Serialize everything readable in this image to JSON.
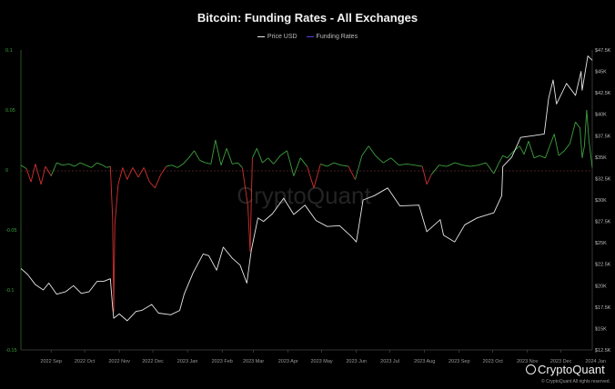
{
  "chart_data": {
    "type": "line",
    "title": "Bitcoin: Funding Rates - All Exchanges",
    "watermark": "CryptoQuant",
    "x_ticks": [
      "2022 Sep",
      "2022 Oct",
      "2022 Nov",
      "2022 Dec",
      "2023 Jan",
      "2023 Feb",
      "2023 Mar",
      "2023 Apr",
      "2023 May",
      "2023 Jun",
      "2023 Jul",
      "2023 Aug",
      "2023 Sep",
      "2023 Oct",
      "2023 Nov",
      "2023 Dec",
      "2024 Jan"
    ],
    "x_domain": [
      "2022-08-19",
      "2024-01-12"
    ],
    "left_axis": {
      "ticks": [
        "0.1",
        "0.05",
        "0",
        "-0.05",
        "-0.1",
        "-0.15"
      ],
      "range": [
        -0.15,
        0.1
      ]
    },
    "right_axis": {
      "ticks": [
        "$47.5K",
        "$45K",
        "$42.5K",
        "$40K",
        "$37.5K",
        "$35K",
        "$32.5K",
        "$30K",
        "$27.5K",
        "$25K",
        "$22.5K",
        "$20K",
        "$17.5K",
        "$15K",
        "$12.5K"
      ],
      "range": [
        12500,
        47500
      ]
    },
    "series": [
      {
        "name": "Price USD",
        "color": "#e8e8e8",
        "axis": "right",
        "points": [
          [
            "2022-08-19",
            22000
          ],
          [
            "2022-08-25",
            21300
          ],
          [
            "2022-09-01",
            20100
          ],
          [
            "2022-09-08",
            19500
          ],
          [
            "2022-09-13",
            20300
          ],
          [
            "2022-09-20",
            19000
          ],
          [
            "2022-09-28",
            19300
          ],
          [
            "2022-10-05",
            20000
          ],
          [
            "2022-10-12",
            19100
          ],
          [
            "2022-10-19",
            19300
          ],
          [
            "2022-10-26",
            20500
          ],
          [
            "2022-11-01",
            20500
          ],
          [
            "2022-11-07",
            20800
          ],
          [
            "2022-11-09",
            17500
          ],
          [
            "2022-11-10",
            16200
          ],
          [
            "2022-11-15",
            16700
          ],
          [
            "2022-11-22",
            15900
          ],
          [
            "2022-11-30",
            17000
          ],
          [
            "2022-12-05",
            17100
          ],
          [
            "2022-12-14",
            17800
          ],
          [
            "2022-12-20",
            16800
          ],
          [
            "2022-12-31",
            16600
          ],
          [
            "2023-01-08",
            17100
          ],
          [
            "2023-01-12",
            19000
          ],
          [
            "2023-01-20",
            21500
          ],
          [
            "2023-01-29",
            23700
          ],
          [
            "2023-02-03",
            23500
          ],
          [
            "2023-02-10",
            21800
          ],
          [
            "2023-02-16",
            24500
          ],
          [
            "2023-02-24",
            23200
          ],
          [
            "2023-03-03",
            22400
          ],
          [
            "2023-03-09",
            20300
          ],
          [
            "2023-03-13",
            24100
          ],
          [
            "2023-03-19",
            27900
          ],
          [
            "2023-03-24",
            27500
          ],
          [
            "2023-04-01",
            28400
          ],
          [
            "2023-04-11",
            30200
          ],
          [
            "2023-04-20",
            28300
          ],
          [
            "2023-04-30",
            29400
          ],
          [
            "2023-05-10",
            27600
          ],
          [
            "2023-05-20",
            26900
          ],
          [
            "2023-05-31",
            27000
          ],
          [
            "2023-06-10",
            25800
          ],
          [
            "2023-06-15",
            25100
          ],
          [
            "2023-06-21",
            30000
          ],
          [
            "2023-07-01",
            30500
          ],
          [
            "2023-07-13",
            31400
          ],
          [
            "2023-07-24",
            29300
          ],
          [
            "2023-08-10",
            29400
          ],
          [
            "2023-08-17",
            26300
          ],
          [
            "2023-08-29",
            27700
          ],
          [
            "2023-09-01",
            25900
          ],
          [
            "2023-09-11",
            25100
          ],
          [
            "2023-09-20",
            27100
          ],
          [
            "2023-10-01",
            27900
          ],
          [
            "2023-10-16",
            28500
          ],
          [
            "2023-10-23",
            30500
          ],
          [
            "2023-10-24",
            33900
          ],
          [
            "2023-11-01",
            35000
          ],
          [
            "2023-11-09",
            37300
          ],
          [
            "2023-11-20",
            37500
          ],
          [
            "2023-11-30",
            37700
          ],
          [
            "2023-12-04",
            41900
          ],
          [
            "2023-12-08",
            44000
          ],
          [
            "2023-12-11",
            41200
          ],
          [
            "2023-12-20",
            43600
          ],
          [
            "2023-12-28",
            42200
          ],
          [
            "2024-01-02",
            45000
          ],
          [
            "2024-01-03",
            42800
          ],
          [
            "2024-01-08",
            46800
          ],
          [
            "2024-01-12",
            46300
          ]
        ]
      },
      {
        "name": "Funding Rates",
        "color": "#5b3fd8",
        "positive_color": "#3ea03e",
        "negative_color": "#d43030",
        "axis": "left",
        "points": [
          [
            "2022-08-19",
            0.004
          ],
          [
            "2022-08-24",
            0.001
          ],
          [
            "2022-08-28",
            -0.01
          ],
          [
            "2022-09-01",
            0.005
          ],
          [
            "2022-09-06",
            -0.012
          ],
          [
            "2022-09-10",
            0.003
          ],
          [
            "2022-09-15",
            -0.005
          ],
          [
            "2022-09-20",
            0.006
          ],
          [
            "2022-09-25",
            0.004
          ],
          [
            "2022-10-01",
            0.005
          ],
          [
            "2022-10-06",
            0.003
          ],
          [
            "2022-10-11",
            0.006
          ],
          [
            "2022-10-16",
            0.004
          ],
          [
            "2022-10-21",
            0.002
          ],
          [
            "2022-10-26",
            0.006
          ],
          [
            "2022-10-31",
            0.004
          ],
          [
            "2022-11-04",
            0.002
          ],
          [
            "2022-11-07",
            0.003
          ],
          [
            "2022-11-09",
            -0.04
          ],
          [
            "2022-11-10",
            -0.118
          ],
          [
            "2022-11-11",
            -0.045
          ],
          [
            "2022-11-14",
            -0.012
          ],
          [
            "2022-11-18",
            0.002
          ],
          [
            "2022-11-22",
            -0.008
          ],
          [
            "2022-11-27",
            0.002
          ],
          [
            "2022-12-02",
            -0.006
          ],
          [
            "2022-12-07",
            0.002
          ],
          [
            "2022-12-12",
            -0.01
          ],
          [
            "2022-12-17",
            -0.015
          ],
          [
            "2022-12-22",
            -0.004
          ],
          [
            "2022-12-27",
            0.003
          ],
          [
            "2023-01-01",
            0.004
          ],
          [
            "2023-01-06",
            0.002
          ],
          [
            "2023-01-11",
            0.005
          ],
          [
            "2023-01-16",
            0.01
          ],
          [
            "2023-01-21",
            0.016
          ],
          [
            "2023-01-26",
            0.008
          ],
          [
            "2023-01-31",
            0.006
          ],
          [
            "2023-02-05",
            0.005
          ],
          [
            "2023-02-09",
            0.025
          ],
          [
            "2023-02-14",
            0.004
          ],
          [
            "2023-02-19",
            0.018
          ],
          [
            "2023-02-24",
            0.005
          ],
          [
            "2023-03-01",
            0.006
          ],
          [
            "2023-03-05",
            0.002
          ],
          [
            "2023-03-10",
            -0.03
          ],
          [
            "2023-03-12",
            -0.068
          ],
          [
            "2023-03-14",
            0.01
          ],
          [
            "2023-03-18",
            0.018
          ],
          [
            "2023-03-23",
            0.006
          ],
          [
            "2023-03-28",
            0.01
          ],
          [
            "2023-04-02",
            0.005
          ],
          [
            "2023-04-08",
            0.012
          ],
          [
            "2023-04-14",
            0.016
          ],
          [
            "2023-04-20",
            -0.005
          ],
          [
            "2023-04-26",
            0.01
          ],
          [
            "2023-05-02",
            0.003
          ],
          [
            "2023-05-08",
            -0.015
          ],
          [
            "2023-05-14",
            0.005
          ],
          [
            "2023-05-20",
            0.003
          ],
          [
            "2023-05-26",
            0.006
          ],
          [
            "2023-06-01",
            0.004
          ],
          [
            "2023-06-08",
            0.003
          ],
          [
            "2023-06-14",
            -0.008
          ],
          [
            "2023-06-20",
            0.012
          ],
          [
            "2023-06-26",
            0.02
          ],
          [
            "2023-07-02",
            0.012
          ],
          [
            "2023-07-09",
            0.006
          ],
          [
            "2023-07-16",
            0.01
          ],
          [
            "2023-07-23",
            0.004
          ],
          [
            "2023-07-30",
            0.005
          ],
          [
            "2023-08-06",
            0.004
          ],
          [
            "2023-08-13",
            0.003
          ],
          [
            "2023-08-17",
            -0.012
          ],
          [
            "2023-08-21",
            -0.004
          ],
          [
            "2023-08-28",
            0.004
          ],
          [
            "2023-09-04",
            0.003
          ],
          [
            "2023-09-11",
            0.006
          ],
          [
            "2023-09-18",
            0.004
          ],
          [
            "2023-09-25",
            0.003
          ],
          [
            "2023-10-02",
            0.004
          ],
          [
            "2023-10-09",
            0.006
          ],
          [
            "2023-10-16",
            -0.003
          ],
          [
            "2023-10-20",
            0.005
          ],
          [
            "2023-10-24",
            0.012
          ],
          [
            "2023-10-28",
            0.01
          ],
          [
            "2023-11-02",
            0.015
          ],
          [
            "2023-11-08",
            0.02
          ],
          [
            "2023-11-12",
            0.013
          ],
          [
            "2023-11-16",
            0.024
          ],
          [
            "2023-11-21",
            0.01
          ],
          [
            "2023-11-26",
            0.012
          ],
          [
            "2023-12-01",
            0.01
          ],
          [
            "2023-12-05",
            0.02
          ],
          [
            "2023-12-09",
            0.03
          ],
          [
            "2023-12-13",
            0.012
          ],
          [
            "2023-12-18",
            0.016
          ],
          [
            "2023-12-23",
            0.022
          ],
          [
            "2023-12-28",
            0.04
          ],
          [
            "2024-01-01",
            0.035
          ],
          [
            "2024-01-03",
            0.01
          ],
          [
            "2024-01-05",
            0.02
          ],
          [
            "2024-01-07",
            0.05
          ],
          [
            "2024-01-09",
            0.025
          ],
          [
            "2024-01-12",
            0.002
          ]
        ]
      }
    ]
  },
  "logo": {
    "text": "CryptoQuant"
  },
  "copyright": "© CryptoQuant All rights reserved."
}
